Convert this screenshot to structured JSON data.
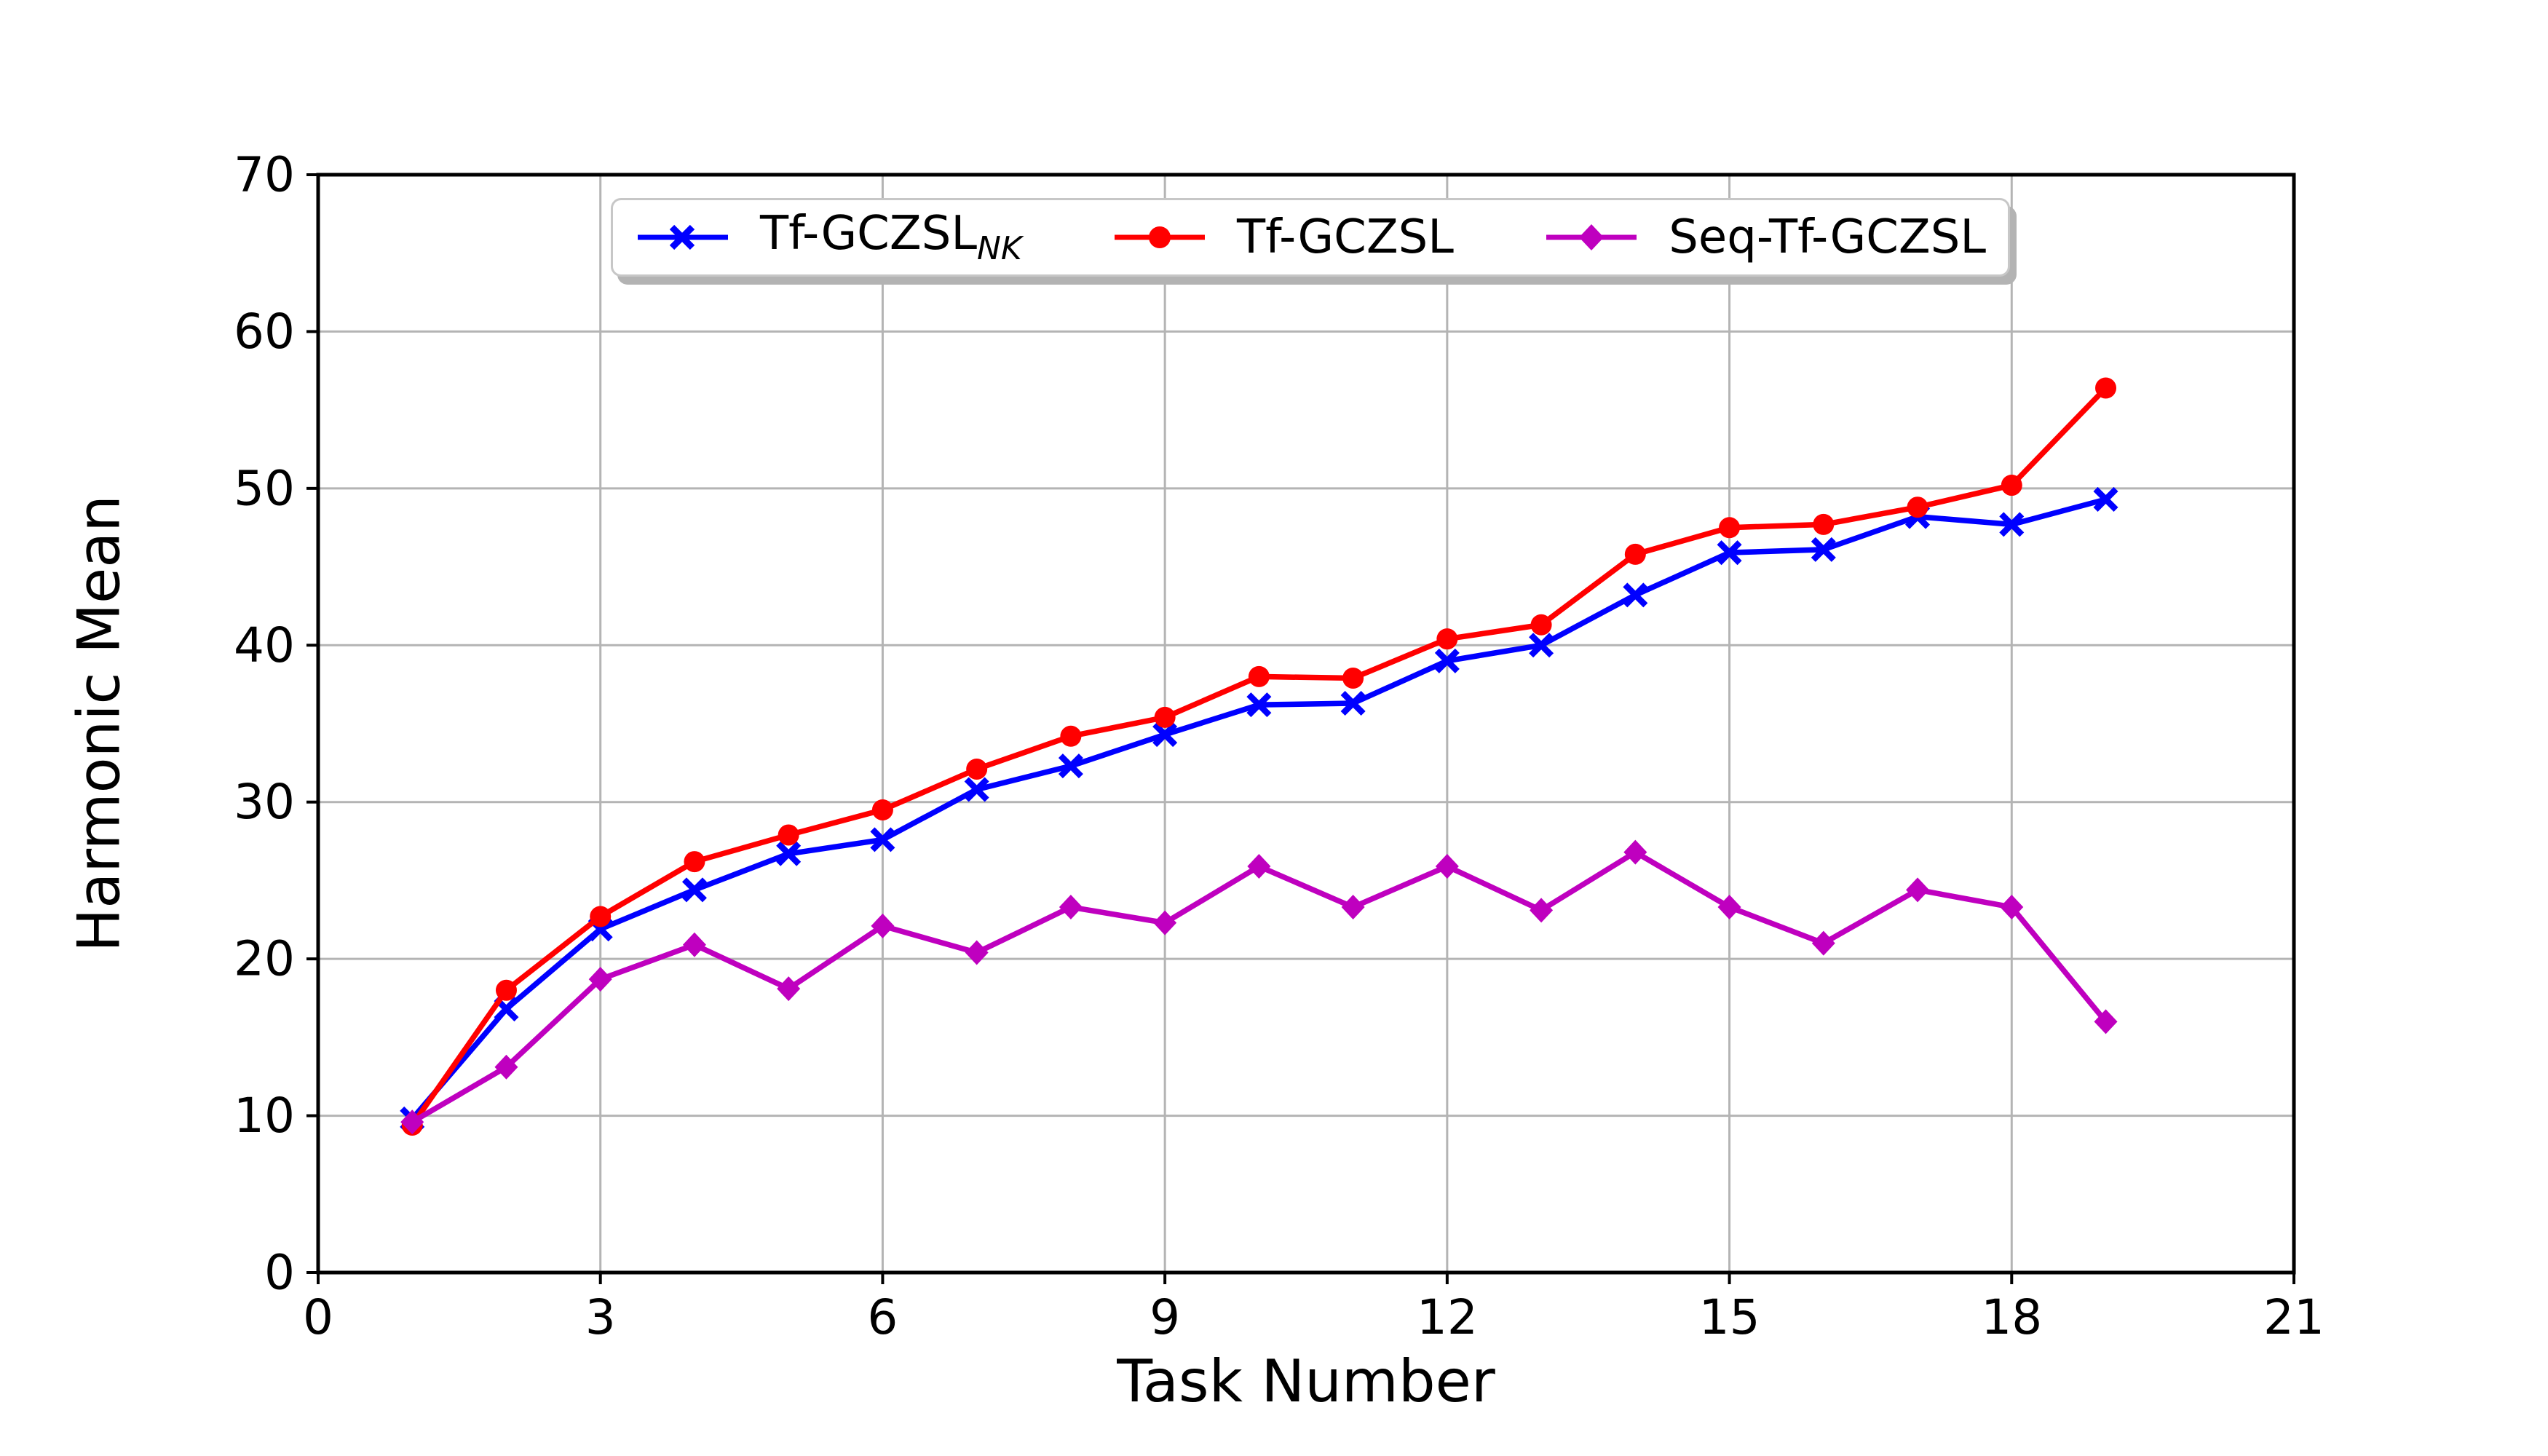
{
  "figure": {
    "background": "#ffffff",
    "spine_color": "#000000",
    "tick_label_color": "#000000"
  },
  "chart_data": {
    "type": "line",
    "title": "",
    "xlabel": "Task Number",
    "ylabel": "Harmonic Mean",
    "xlim": [
      0,
      21
    ],
    "ylim": [
      0,
      70
    ],
    "x_ticks": [
      0,
      3,
      6,
      9,
      12,
      15,
      18,
      21
    ],
    "y_ticks": [
      0,
      10,
      20,
      30,
      40,
      50,
      60,
      70
    ],
    "grid": true,
    "grid_color": "#b4b4b4",
    "legend_position": "upper center",
    "x": [
      1,
      2,
      3,
      4,
      5,
      6,
      7,
      8,
      9,
      10,
      11,
      12,
      13,
      14,
      15,
      16,
      17,
      18,
      19
    ],
    "series": [
      {
        "name": "Tf-GCZSL_NK",
        "label_main": "Tf-GCZSL",
        "label_sub": "NK",
        "color": "#0000ff",
        "marker": "x",
        "values": [
          9.8,
          16.8,
          21.9,
          24.4,
          26.7,
          27.6,
          30.8,
          32.3,
          34.3,
          36.2,
          36.3,
          39.0,
          40.0,
          43.2,
          45.9,
          46.1,
          48.2,
          47.7,
          49.3
        ]
      },
      {
        "name": "Tf-GCZSL",
        "label_main": "Tf-GCZSL",
        "label_sub": "",
        "color": "#ff0000",
        "marker": "circle",
        "values": [
          9.4,
          18.0,
          22.7,
          26.2,
          27.9,
          29.5,
          32.1,
          34.2,
          35.4,
          38.0,
          37.9,
          40.4,
          41.3,
          45.8,
          47.5,
          47.7,
          48.8,
          50.2,
          56.4
        ]
      },
      {
        "name": "Seq-Tf-GCZSL",
        "label_main": "Seq-Tf-GCZSL",
        "label_sub": "",
        "color": "#bf00bf",
        "marker": "diamond",
        "values": [
          9.6,
          13.1,
          18.7,
          20.9,
          18.1,
          22.1,
          20.4,
          23.3,
          22.3,
          25.9,
          23.3,
          25.9,
          23.1,
          26.8,
          23.3,
          21.0,
          24.4,
          23.3,
          16.0
        ]
      }
    ]
  }
}
